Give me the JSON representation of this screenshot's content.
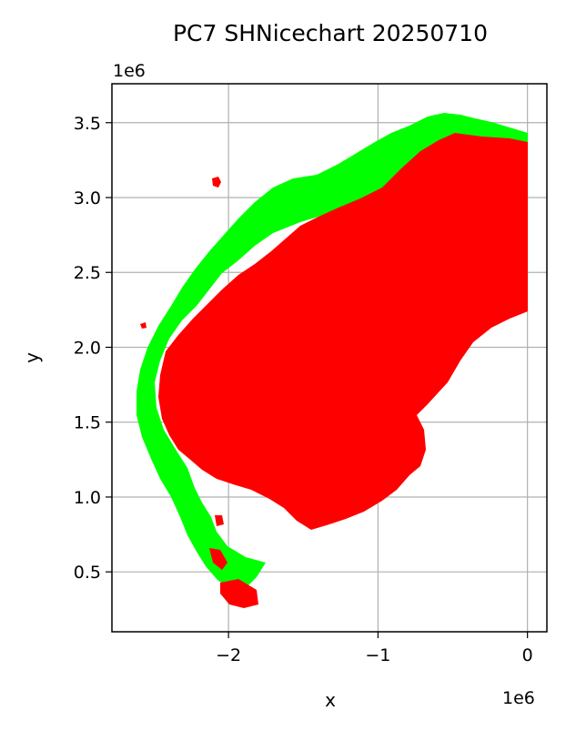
{
  "chart_data": {
    "type": "map",
    "title": "PC7 SHNicechart 20250710",
    "xlabel": "x",
    "ylabel": "y",
    "x_offset_label": "1e6",
    "y_offset_label": "1e6",
    "xlim": [
      -2.78,
      0.13
    ],
    "ylim": [
      0.1,
      3.76
    ],
    "xticks": [
      -2,
      -1,
      0
    ],
    "xtick_labels": [
      "−2",
      "−1",
      "0"
    ],
    "yticks": [
      0.5,
      1.0,
      1.5,
      2.0,
      2.5,
      3.0,
      3.5
    ],
    "ytick_labels": [
      "0.5",
      "1.0",
      "1.5",
      "2.0",
      "2.5",
      "3.0",
      "3.5"
    ],
    "grid": true,
    "colors": {
      "ice_region": "#ff0000",
      "edge_region": "#00ff00",
      "grid": "#b0b0b0"
    }
  }
}
